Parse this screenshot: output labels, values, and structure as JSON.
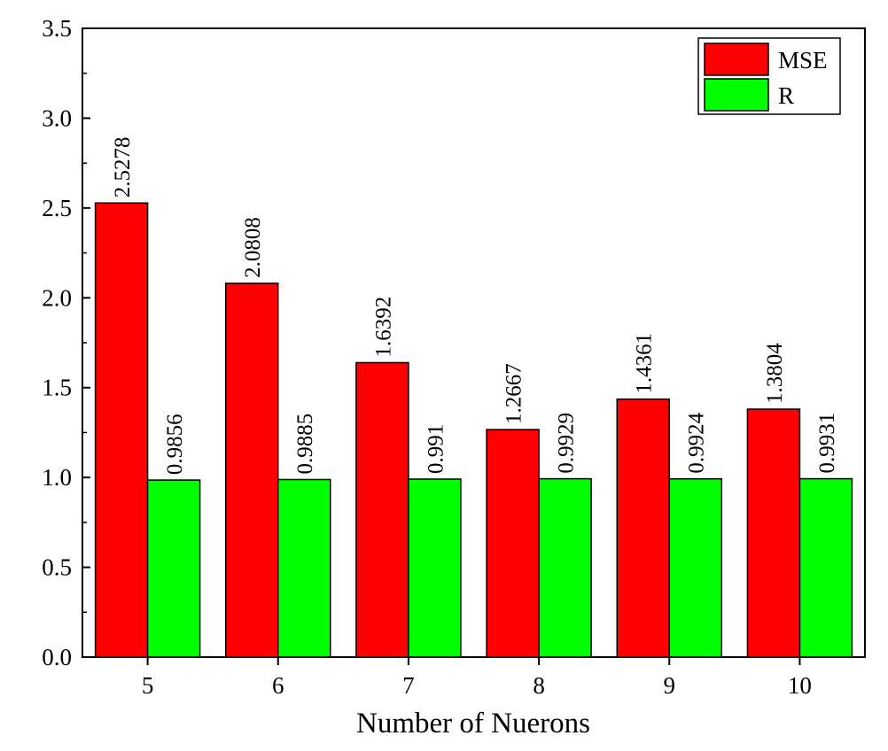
{
  "chart_data": {
    "type": "bar",
    "title": "",
    "xlabel": "Number of Nuerons",
    "ylabel": "",
    "categories": [
      "5",
      "6",
      "7",
      "8",
      "9",
      "10"
    ],
    "series": [
      {
        "name": "MSE",
        "color": "#ff0000",
        "values": [
          2.5278,
          2.0808,
          1.6392,
          1.2667,
          1.4361,
          1.3804
        ],
        "labels": [
          "2.5278",
          "2.0808",
          "1.6392",
          "1.2667",
          "1.4361",
          "1.3804"
        ]
      },
      {
        "name": "R",
        "color": "#00ff00",
        "values": [
          0.9856,
          0.9885,
          0.991,
          0.9929,
          0.9924,
          0.9931
        ],
        "labels": [
          "0.9856",
          "0.9885",
          "0.991",
          "0.9929",
          "0.9924",
          "0.9931"
        ]
      }
    ],
    "ylim": [
      0,
      3.5
    ],
    "yticks": [
      "0.0",
      "0.5",
      "1.0",
      "1.5",
      "2.0",
      "2.5",
      "3.0",
      "3.5"
    ],
    "grid": false,
    "legend_position": "top-right"
  }
}
